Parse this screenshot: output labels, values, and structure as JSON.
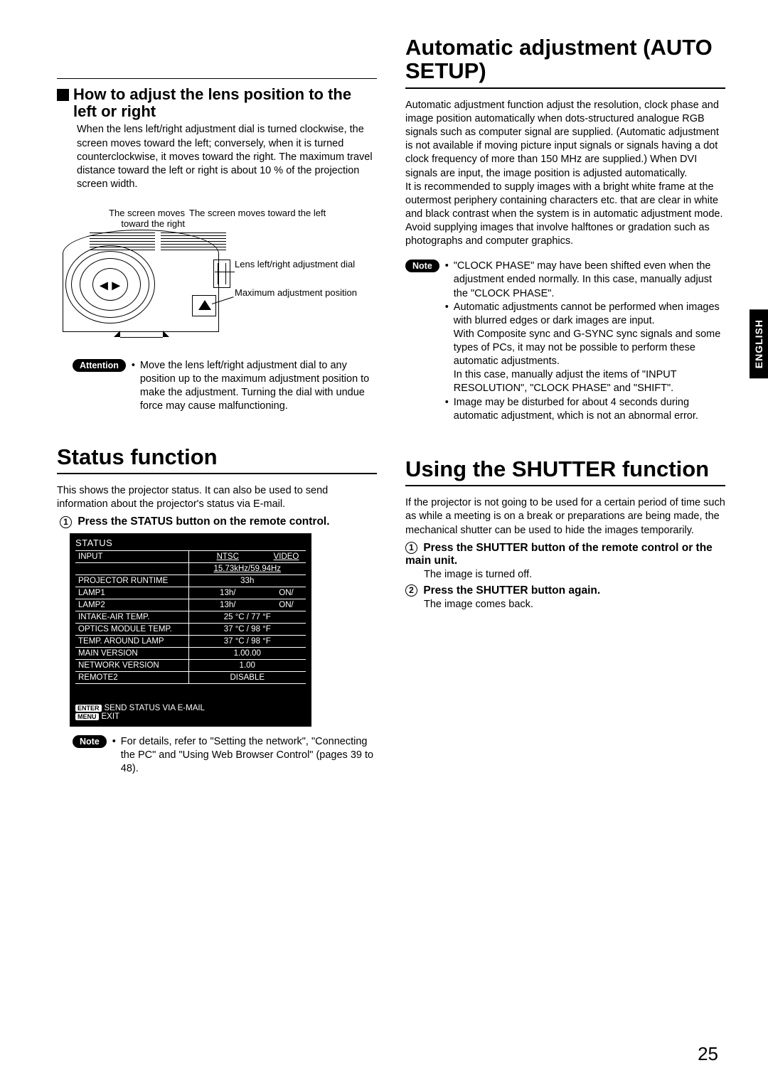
{
  "page_number": "25",
  "english_tab": "ENGLISH",
  "left": {
    "section1": {
      "title": "How to adjust the lens position to the left or right",
      "body": "When the lens left/right adjustment dial is turned clockwise, the screen moves toward the left; conversely, when it is turned counterclockwise, it moves toward the right. The maximum travel distance toward the left or right is about 10 % of the projection screen width.",
      "diagram": {
        "label_left": "The screen moves toward the right",
        "label_right": "The screen moves toward the left",
        "label_dial": "Lens left/right adjustment dial",
        "label_max": "Maximum adjustment position"
      },
      "attention_label": "Attention",
      "attention_text": "Move the lens left/right adjustment dial to any position up to the maximum adjustment position to make the adjustment. Turning the dial with undue force may cause malfunctioning."
    },
    "status": {
      "heading": "Status function",
      "intro": "This shows the projector status. It can also be used to send information about the projector's status via E-mail.",
      "step_label": "Press the STATUS button on the remote control.",
      "box": {
        "title": "STATUS",
        "rows": [
          {
            "k": "INPUT",
            "v1": "NTSC",
            "v2": "VIDEO",
            "split": true,
            "underline": true
          },
          {
            "k": "",
            "v": "15.73kHz/59.94Hz",
            "noleft": true
          },
          {
            "k": "PROJECTOR RUNTIME",
            "v": "33h"
          },
          {
            "k": "LAMP1",
            "v1": "13h/",
            "v2": "ON/",
            "split": true
          },
          {
            "k": "LAMP2",
            "v1": "13h/",
            "v2": "ON/",
            "split": true
          },
          {
            "k": "INTAKE-AIR TEMP.",
            "v": "25 °C  /   77 °F"
          },
          {
            "k": "OPTICS MODULE TEMP.",
            "v": "37 °C  /   98 °F"
          },
          {
            "k": "TEMP. AROUND LAMP",
            "v": "37 °C  /   98 °F"
          },
          {
            "k": "MAIN VERSION",
            "v": "1.00.00"
          },
          {
            "k": "NETWORK VERSION",
            "v": "1.00"
          },
          {
            "k": "REMOTE2",
            "v": "DISABLE"
          }
        ],
        "footer1_btn": "ENTER",
        "footer1_txt": "SEND STATUS VIA E-MAIL",
        "footer2_btn": "MENU",
        "footer2_txt": "EXIT"
      },
      "note_label": "Note",
      "note_text": "For details, refer to \"Setting the network\", \"Connecting the PC\" and \"Using Web Browser Control\" (pages 39 to 48)."
    }
  },
  "right": {
    "auto": {
      "heading": "Automatic adjustment (AUTO SETUP)",
      "p1": "Automatic adjustment function adjust the resolution, clock phase and image position automatically when dots-structured analogue RGB signals such as computer signal are supplied. (Automatic adjustment is not available if moving picture input signals or signals having a dot clock frequency of more than 150 MHz are supplied.) When DVI signals are input, the image position is adjusted automatically.",
      "p2": "It is recommended to supply images with a bright white frame at the outermost periphery containing characters etc. that are clear in white and black contrast when the system is in automatic adjustment mode. Avoid supplying images that involve halftones or gradation such as photographs and computer graphics.",
      "note_label": "Note",
      "notes": [
        "\"CLOCK PHASE\" may have been shifted even when the adjustment ended normally. In this case, manually adjust the \"CLOCK PHASE\".",
        "Automatic adjustments cannot be performed when images with blurred edges or dark images are input.\nWith Composite sync and G-SYNC sync signals and some types of PCs, it may not be possible to perform these automatic adjustments.\nIn this case, manually adjust the items of \"INPUT RESOLUTION\", \"CLOCK PHASE\" and \"SHIFT\".",
        "Image may be disturbed for about 4 seconds during automatic adjustment, which is not an abnormal error."
      ]
    },
    "shutter": {
      "heading": "Using the SHUTTER function",
      "intro": "If the projector is not going to be used for a certain period of time such as while a meeting is on a break or preparations are being made, the mechanical shutter can be used to hide the images temporarily.",
      "step1": "Press the SHUTTER button of the remote control or the main unit.",
      "step1_sub": "The image is turned off.",
      "step2": "Press the SHUTTER button again.",
      "step2_sub": "The image comes back."
    }
  }
}
